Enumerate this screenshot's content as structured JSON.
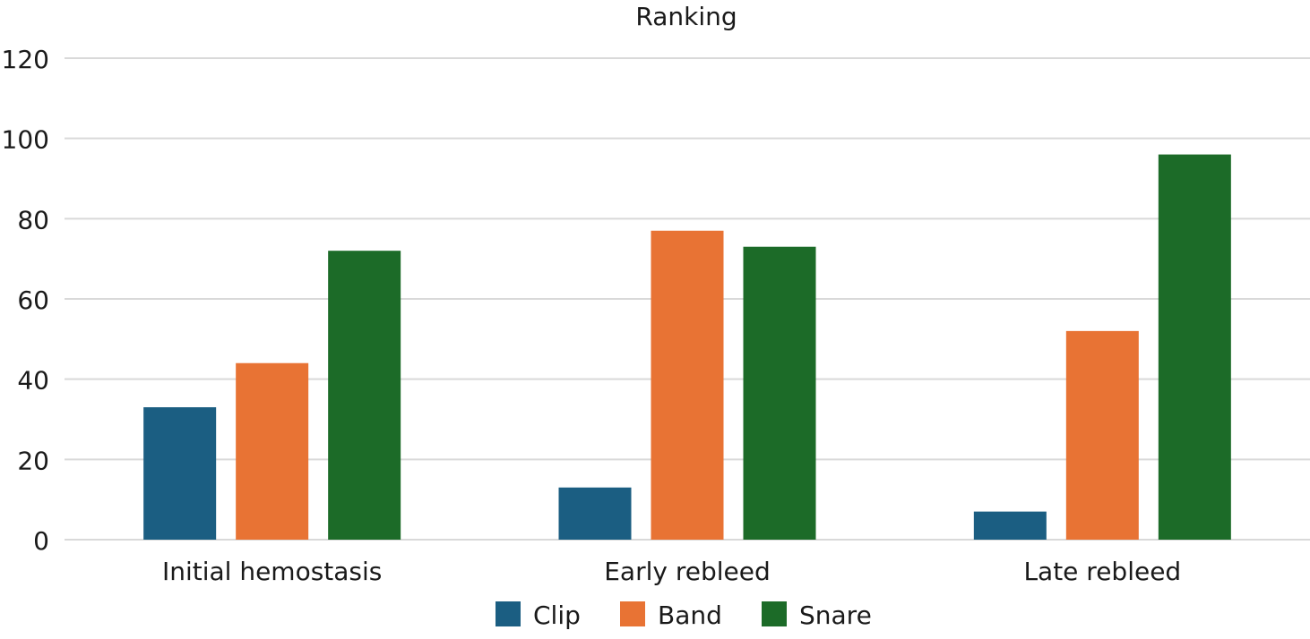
{
  "chart_data": {
    "type": "bar",
    "title": "Ranking",
    "categories": [
      "Initial hemostasis",
      "Early rebleed",
      "Late rebleed"
    ],
    "series": [
      {
        "name": "Clip",
        "values": [
          33,
          13,
          7
        ],
        "color": "#1b5e82"
      },
      {
        "name": "Band",
        "values": [
          44,
          77,
          52
        ],
        "color": "#e87334"
      },
      {
        "name": "Snare",
        "values": [
          72,
          73,
          96
        ],
        "color": "#1c6b28"
      }
    ],
    "ylim": [
      0,
      120
    ],
    "yticks": [
      "0",
      "20",
      "40",
      "60",
      "80",
      "100",
      "120"
    ],
    "grid": true,
    "legend_position": "bottom"
  }
}
